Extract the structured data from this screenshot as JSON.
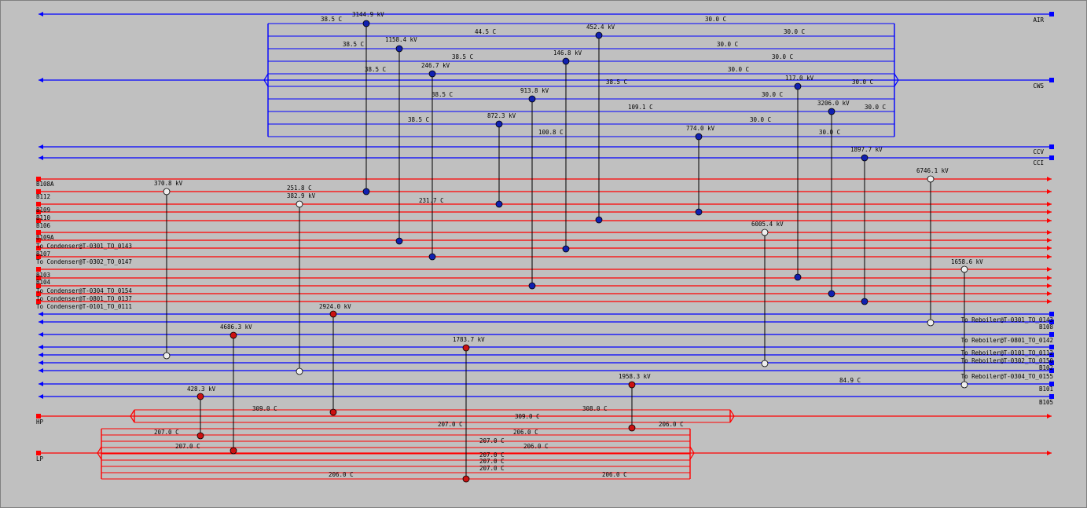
{
  "colors": {
    "background": "#c0c0c0",
    "hot": "#ff0000",
    "cold": "#0000ff",
    "hot_node": "#cc1111",
    "cold_node": "#1020b0",
    "utility_node": "#eeeeee"
  },
  "streams": [
    {
      "id": "AIR",
      "label": "AIR",
      "kind": "cold",
      "dir": "left"
    },
    {
      "id": "CWS",
      "label": "CWS",
      "kind": "cold",
      "dir": "left"
    },
    {
      "id": "CCV",
      "label": "CCV",
      "kind": "cold",
      "dir": "left"
    },
    {
      "id": "CCI",
      "label": "CCI",
      "kind": "cold",
      "dir": "left"
    },
    {
      "id": "B108A",
      "label": "B108A",
      "kind": "hot",
      "dir": "right"
    },
    {
      "id": "B112",
      "label": "B112",
      "kind": "hot",
      "dir": "right"
    },
    {
      "id": "B109",
      "label": "B109",
      "kind": "hot",
      "dir": "right"
    },
    {
      "id": "B110",
      "label": "B110",
      "kind": "hot",
      "dir": "right"
    },
    {
      "id": "B106",
      "label": "B106",
      "kind": "hot",
      "dir": "right"
    },
    {
      "id": "B109A",
      "label": "B109A",
      "kind": "hot",
      "dir": "right"
    },
    {
      "id": "TC0301",
      "label": "To Condenser@T-0301_TO_0143",
      "kind": "hot",
      "dir": "right"
    },
    {
      "id": "B107",
      "label": "B107",
      "kind": "hot",
      "dir": "right"
    },
    {
      "id": "TC0302",
      "label": "To Condenser@T-0302_TO_0147",
      "kind": "hot",
      "dir": "right"
    },
    {
      "id": "B103",
      "label": "B103",
      "kind": "hot",
      "dir": "right"
    },
    {
      "id": "B104",
      "label": "B104",
      "kind": "hot",
      "dir": "right"
    },
    {
      "id": "TC0304",
      "label": "To Condenser@T-0304_TO_0154",
      "kind": "hot",
      "dir": "right"
    },
    {
      "id": "TC0801",
      "label": "To Condenser@T-0801_TO_0137",
      "kind": "hot",
      "dir": "right"
    },
    {
      "id": "TC0101",
      "label": "To Condenser@T-0101_TO_0111",
      "kind": "hot",
      "dir": "right"
    },
    {
      "id": "TR0301",
      "label": "To Reboiler@T-0301_TO_0143",
      "kind": "cold",
      "dir": "left"
    },
    {
      "id": "B108",
      "label": "B108",
      "kind": "cold",
      "dir": "left"
    },
    {
      "id": "TR0801",
      "label": "To Reboiler@T-0801_TO_0142",
      "kind": "cold",
      "dir": "left"
    },
    {
      "id": "TR0101",
      "label": "To Reboiler@T-0101_TO_0112",
      "kind": "cold",
      "dir": "left"
    },
    {
      "id": "TR0302",
      "label": "To Reboiler@T-0302_TO_0150",
      "kind": "cold",
      "dir": "left"
    },
    {
      "id": "B102",
      "label": "B102",
      "kind": "cold",
      "dir": "left"
    },
    {
      "id": "TR0304",
      "label": "To Reboiler@T-0304_TO_0155",
      "kind": "cold",
      "dir": "left"
    },
    {
      "id": "B101",
      "label": "B101",
      "kind": "cold",
      "dir": "left"
    },
    {
      "id": "B105",
      "label": "B105",
      "kind": "cold",
      "dir": "left"
    },
    {
      "id": "HP",
      "label": "HP",
      "kind": "hot",
      "dir": "right"
    },
    {
      "id": "LP",
      "label": "LP",
      "kind": "hot",
      "dir": "right"
    }
  ],
  "branch_groups": [
    {
      "id": "cws-branches",
      "kind": "cold",
      "main": "CWS"
    },
    {
      "id": "hp-branches",
      "kind": "hot",
      "main": "HP"
    },
    {
      "id": "lp-branches",
      "kind": "hot",
      "main": "LP"
    }
  ],
  "exchangers": [
    {
      "id": "E1",
      "duty": "3144.9 kV",
      "kind": "cold",
      "from": "AIR-branch",
      "to": "B108A"
    },
    {
      "id": "E2",
      "duty": "1158.4 kV",
      "kind": "cold",
      "from": "CWS-branch-2",
      "to": "B109A"
    },
    {
      "id": "E3",
      "duty": "246.7 kV",
      "kind": "cold",
      "from": "CWS-branch-4",
      "to": "B107"
    },
    {
      "id": "E4",
      "duty": "872.3 kV",
      "kind": "cold",
      "from": "CWS-branch-8",
      "to": "B109"
    },
    {
      "id": "E5",
      "duty": "913.8 kV",
      "kind": "cold",
      "from": "CWS-branch-6",
      "to": "B104"
    },
    {
      "id": "E6",
      "duty": "146.8 kV",
      "kind": "cold",
      "from": "CWS-branch-3",
      "to": "TC0301"
    },
    {
      "id": "E7",
      "duty": "452.4 kV",
      "kind": "cold",
      "from": "CWS-branch-1",
      "to": "B110"
    },
    {
      "id": "E8",
      "duty": "774.0 kV",
      "kind": "cold",
      "from": "CWS-branch-9",
      "to": "B106"
    },
    {
      "id": "E9",
      "duty": "117.0 kV",
      "kind": "cold",
      "from": "CWS-branch-5",
      "to": "B103"
    },
    {
      "id": "E10",
      "duty": "3206.0 kV",
      "kind": "cold",
      "from": "CWS-branch-7",
      "to": "TC0304"
    },
    {
      "id": "E11",
      "duty": "1897.7 kV",
      "kind": "cold",
      "from": "CCI",
      "to": "TC0801"
    },
    {
      "id": "E12",
      "duty": "370.8 kV",
      "kind": "utility",
      "from": "B112",
      "to": "TR0101"
    },
    {
      "id": "E13",
      "duty": "382.9 kV",
      "kind": "utility",
      "from": "B109",
      "to": "B102"
    },
    {
      "id": "E14",
      "duty": "6746.1 kV",
      "kind": "utility",
      "from": "B108A",
      "to": "TR0301"
    },
    {
      "id": "E15",
      "duty": "6005.4 kV",
      "kind": "utility",
      "from": "B109A",
      "to": "TR0302"
    },
    {
      "id": "E16",
      "duty": "1658.6 kV",
      "kind": "utility",
      "from": "B107",
      "to": "TR0304"
    },
    {
      "id": "E17",
      "duty": "2924.0 kV",
      "kind": "hot",
      "from": "B108",
      "to": "HP-branch-1"
    },
    {
      "id": "E18",
      "duty": "4686.3 kV",
      "kind": "hot",
      "from": "TR0801",
      "to": "LP-branch-2"
    },
    {
      "id": "E19",
      "duty": "1783.7 kV",
      "kind": "hot",
      "from": "TR0801",
      "to": "LP-branch-6"
    },
    {
      "id": "E20",
      "duty": "1958.3 kV",
      "kind": "hot",
      "from": "B101",
      "to": "HP-branch-1b"
    },
    {
      "id": "E21",
      "duty": "428.3 kV",
      "kind": "hot",
      "from": "B101",
      "to": "LP-branch-1"
    }
  ],
  "temperature_labels": [
    "38.5 C",
    "30.0 C",
    "44.5 C",
    "30.0 C",
    "38.5 C",
    "30.0 C",
    "38.5 C",
    "30.0 C",
    "38.5 C",
    "30.0 C",
    "30.0 C",
    "38.5 C",
    "30.0 C",
    "38.5 C",
    "30.0 C",
    "109.1 C",
    "38.5 C",
    "30.0 C",
    "100.8 C",
    "30.0 C",
    "251.8 C",
    "231.7 C",
    "84.9 C",
    "309.0 C",
    "309.0 C",
    "308.0 C",
    "207.0 C",
    "207.0 C",
    "206.0 C",
    "206.0 C",
    "207.0 C",
    "206.0 C",
    "207.0 C",
    "207.0 C",
    "207.0 C",
    "207.0 C",
    "206.0 C",
    "206.0 C"
  ]
}
